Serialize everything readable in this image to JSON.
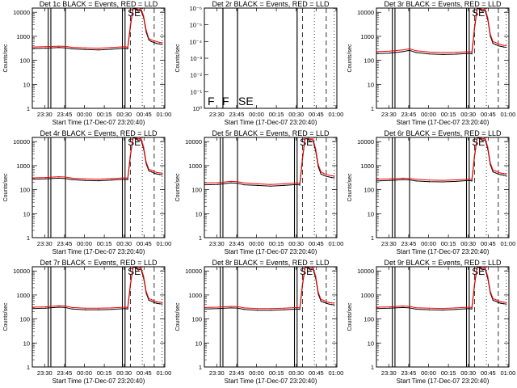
{
  "x_axis": {
    "label": "Start Time (17-Dec-07 23:20:40)",
    "tick_labels": [
      "23:30",
      "23:45",
      "00:00",
      "00:15",
      "00:30",
      "00:45",
      "01:00"
    ],
    "tick_minutes": [
      9.33,
      24.33,
      39.33,
      54.33,
      69.33,
      84.33,
      99.33
    ],
    "range_minutes": [
      0,
      100
    ]
  },
  "y_axis_label": "Counts/sec",
  "y_log_ticks": [
    "1",
    "10",
    "100",
    "1000",
    "10000"
  ],
  "y_log_range": [
    1,
    15000
  ],
  "panel2_ticks": [
    "10⁰",
    "10⁻¹",
    "10⁻²",
    "10⁻³",
    "10⁻⁴",
    "10⁻⁵",
    "10⁻⁶"
  ],
  "colors": {
    "events": "#000000",
    "lld": "#ff0000",
    "axes": "#000000"
  },
  "chart_data": [
    {
      "type": "line",
      "detector": "1c",
      "title": "Det 1c BLACK = Events, RED = LLD",
      "empty": false,
      "markers": "SE",
      "series": [
        {
          "name": "Events",
          "color": "#000000",
          "x": [
            0,
            10,
            20,
            25,
            30,
            40,
            50,
            60,
            70,
            72,
            74,
            76,
            78,
            80,
            82,
            84,
            86,
            88,
            90,
            92,
            94,
            96,
            98
          ],
          "y": [
            310,
            320,
            340,
            330,
            300,
            280,
            270,
            290,
            320,
            300,
            2500,
            14000,
            14000,
            11000,
            12000,
            6000,
            1500,
            700,
            600,
            550,
            500,
            480,
            460
          ]
        },
        {
          "name": "LLD",
          "color": "#ff0000",
          "x": [
            0,
            10,
            20,
            25,
            30,
            40,
            50,
            60,
            70,
            72,
            74,
            76,
            78,
            80,
            82,
            84,
            86,
            88,
            90,
            92,
            94,
            96,
            98
          ],
          "y": [
            360,
            370,
            390,
            380,
            350,
            330,
            320,
            340,
            370,
            350,
            3000,
            15000,
            15000,
            13000,
            14000,
            7000,
            1800,
            800,
            700,
            650,
            600,
            560,
            540
          ]
        }
      ]
    },
    {
      "type": "line",
      "detector": "2r",
      "title": "Det 2r BLACK = Events, RED = LLD",
      "empty": true,
      "markers": "F F SE",
      "series": []
    },
    {
      "type": "line",
      "detector": "3r",
      "title": "Det 3r BLACK = Events, RED = LLD",
      "empty": false,
      "markers": "SE",
      "series": [
        {
          "name": "Events",
          "color": "#000000",
          "x": [
            0,
            10,
            20,
            25,
            30,
            40,
            50,
            60,
            70,
            72,
            74,
            76,
            78,
            80,
            82,
            84,
            86,
            88,
            90,
            92,
            94,
            96,
            98
          ],
          "y": [
            190,
            200,
            230,
            260,
            210,
            185,
            175,
            180,
            195,
            185,
            2000,
            14000,
            14000,
            11000,
            12000,
            5000,
            1000,
            500,
            450,
            400,
            380,
            360,
            350
          ]
        },
        {
          "name": "LLD",
          "color": "#ff0000",
          "x": [
            0,
            10,
            20,
            25,
            30,
            40,
            50,
            60,
            70,
            72,
            74,
            76,
            78,
            80,
            82,
            84,
            86,
            88,
            90,
            92,
            94,
            96,
            98
          ],
          "y": [
            230,
            240,
            270,
            300,
            250,
            220,
            210,
            215,
            230,
            220,
            2400,
            15000,
            15000,
            13000,
            14000,
            6000,
            1200,
            600,
            550,
            480,
            450,
            420,
            410
          ]
        }
      ]
    },
    {
      "type": "line",
      "detector": "4r",
      "title": "Det 4r BLACK = Events, RED = LLD",
      "empty": false,
      "markers": "SE",
      "series": [
        {
          "name": "Events",
          "color": "#000000",
          "x": [
            0,
            10,
            20,
            25,
            30,
            40,
            50,
            60,
            70,
            72,
            74,
            76,
            78,
            80,
            82,
            84,
            86,
            88,
            90,
            92,
            94,
            96,
            98
          ],
          "y": [
            270,
            280,
            300,
            290,
            260,
            240,
            235,
            250,
            270,
            260,
            2500,
            14000,
            14000,
            11000,
            12000,
            5000,
            1200,
            600,
            550,
            480,
            450,
            430,
            420
          ]
        },
        {
          "name": "LLD",
          "color": "#ff0000",
          "x": [
            0,
            10,
            20,
            25,
            30,
            40,
            50,
            60,
            70,
            72,
            74,
            76,
            78,
            80,
            82,
            84,
            86,
            88,
            90,
            92,
            94,
            96,
            98
          ],
          "y": [
            310,
            320,
            345,
            335,
            300,
            280,
            275,
            290,
            310,
            300,
            2900,
            15000,
            15000,
            13000,
            14000,
            6000,
            1400,
            700,
            650,
            560,
            520,
            500,
            490
          ]
        }
      ]
    },
    {
      "type": "line",
      "detector": "5r",
      "title": "Det 5r BLACK = Events, RED = LLD",
      "empty": false,
      "markers": "SE",
      "series": [
        {
          "name": "Events",
          "color": "#000000",
          "x": [
            0,
            10,
            20,
            25,
            30,
            40,
            50,
            60,
            70,
            72,
            74,
            76,
            78,
            80,
            82,
            84,
            86,
            88,
            90,
            92,
            94,
            96,
            98
          ],
          "y": [
            160,
            165,
            190,
            185,
            160,
            150,
            140,
            150,
            165,
            155,
            1800,
            13000,
            13000,
            10000,
            11000,
            4000,
            900,
            450,
            400,
            360,
            340,
            320,
            310
          ]
        },
        {
          "name": "LLD",
          "color": "#ff0000",
          "x": [
            0,
            10,
            20,
            25,
            30,
            40,
            50,
            60,
            70,
            72,
            74,
            76,
            78,
            80,
            82,
            84,
            86,
            88,
            90,
            92,
            94,
            96,
            98
          ],
          "y": [
            190,
            195,
            220,
            215,
            190,
            175,
            165,
            175,
            190,
            180,
            2100,
            15000,
            15000,
            12000,
            13000,
            5000,
            1100,
            550,
            480,
            430,
            400,
            380,
            370
          ]
        }
      ]
    },
    {
      "type": "line",
      "detector": "6r",
      "title": "Det 6r BLACK = Events, RED = LLD",
      "empty": false,
      "markers": "SE",
      "series": [
        {
          "name": "Events",
          "color": "#000000",
          "x": [
            0,
            10,
            20,
            25,
            30,
            40,
            50,
            60,
            70,
            72,
            74,
            76,
            78,
            80,
            82,
            84,
            86,
            88,
            90,
            92,
            94,
            96,
            98
          ],
          "y": [
            230,
            240,
            260,
            255,
            230,
            215,
            210,
            220,
            240,
            230,
            2300,
            14000,
            14000,
            11000,
            12000,
            5000,
            1100,
            550,
            500,
            440,
            420,
            400,
            390
          ]
        },
        {
          "name": "LLD",
          "color": "#ff0000",
          "x": [
            0,
            10,
            20,
            25,
            30,
            40,
            50,
            60,
            70,
            72,
            74,
            76,
            78,
            80,
            82,
            84,
            86,
            88,
            90,
            92,
            94,
            96,
            98
          ],
          "y": [
            270,
            280,
            300,
            295,
            270,
            250,
            245,
            255,
            275,
            265,
            2700,
            15000,
            15000,
            13000,
            14000,
            6000,
            1300,
            650,
            600,
            520,
            490,
            470,
            460
          ]
        }
      ]
    },
    {
      "type": "line",
      "detector": "7r",
      "title": "Det 7r BLACK = Events, RED = LLD",
      "empty": false,
      "markers": "SE",
      "series": [
        {
          "name": "Events",
          "color": "#000000",
          "x": [
            0,
            10,
            20,
            25,
            30,
            40,
            50,
            60,
            70,
            72,
            74,
            76,
            78,
            80,
            82,
            84,
            86,
            88,
            90,
            92,
            94,
            96,
            98
          ],
          "y": [
            270,
            280,
            310,
            300,
            260,
            240,
            240,
            250,
            270,
            260,
            2500,
            14000,
            14000,
            11000,
            12000,
            5000,
            1200,
            600,
            550,
            480,
            450,
            430,
            420
          ]
        },
        {
          "name": "LLD",
          "color": "#ff0000",
          "x": [
            0,
            10,
            20,
            25,
            30,
            40,
            50,
            60,
            70,
            72,
            74,
            76,
            78,
            80,
            82,
            84,
            86,
            88,
            90,
            92,
            94,
            96,
            98
          ],
          "y": [
            310,
            320,
            355,
            345,
            300,
            280,
            280,
            290,
            310,
            300,
            2900,
            15000,
            15000,
            13000,
            14000,
            6000,
            1400,
            700,
            650,
            560,
            520,
            500,
            490
          ]
        }
      ]
    },
    {
      "type": "line",
      "detector": "8r",
      "title": "Det 8r BLACK = Events, RED = LLD",
      "empty": false,
      "markers": "SE",
      "series": [
        {
          "name": "Events",
          "color": "#000000",
          "x": [
            0,
            10,
            20,
            25,
            30,
            40,
            50,
            60,
            70,
            72,
            74,
            76,
            78,
            80,
            82,
            84,
            86,
            88,
            90,
            92,
            94,
            96,
            98
          ],
          "y": [
            260,
            270,
            290,
            285,
            250,
            230,
            230,
            240,
            260,
            250,
            2400,
            14000,
            14000,
            11000,
            12000,
            5000,
            1100,
            550,
            500,
            450,
            420,
            400,
            390
          ]
        },
        {
          "name": "LLD",
          "color": "#ff0000",
          "x": [
            0,
            10,
            20,
            25,
            30,
            40,
            50,
            60,
            70,
            72,
            74,
            76,
            78,
            80,
            82,
            84,
            86,
            88,
            90,
            92,
            94,
            96,
            98
          ],
          "y": [
            300,
            310,
            335,
            330,
            290,
            270,
            270,
            280,
            300,
            290,
            2800,
            15000,
            15000,
            13000,
            14000,
            6000,
            1300,
            650,
            600,
            520,
            490,
            470,
            460
          ]
        }
      ]
    },
    {
      "type": "line",
      "detector": "9r",
      "title": "Det 9r BLACK = Events, RED = LLD",
      "empty": false,
      "markers": "SE",
      "series": [
        {
          "name": "Events",
          "color": "#000000",
          "x": [
            0,
            10,
            20,
            25,
            30,
            40,
            50,
            60,
            70,
            72,
            74,
            76,
            78,
            80,
            82,
            84,
            86,
            88,
            90,
            92,
            94,
            96,
            98
          ],
          "y": [
            270,
            280,
            300,
            290,
            255,
            240,
            235,
            250,
            270,
            260,
            2500,
            14000,
            14000,
            11000,
            12000,
            5000,
            1200,
            600,
            550,
            480,
            450,
            430,
            420
          ]
        },
        {
          "name": "LLD",
          "color": "#ff0000",
          "x": [
            0,
            10,
            20,
            25,
            30,
            40,
            50,
            60,
            70,
            72,
            74,
            76,
            78,
            80,
            82,
            84,
            86,
            88,
            90,
            92,
            94,
            96,
            98
          ],
          "y": [
            310,
            320,
            345,
            335,
            295,
            280,
            275,
            290,
            310,
            300,
            2900,
            15000,
            15000,
            13000,
            14000,
            6000,
            1400,
            700,
            650,
            560,
            520,
            500,
            490
          ]
        }
      ]
    }
  ]
}
